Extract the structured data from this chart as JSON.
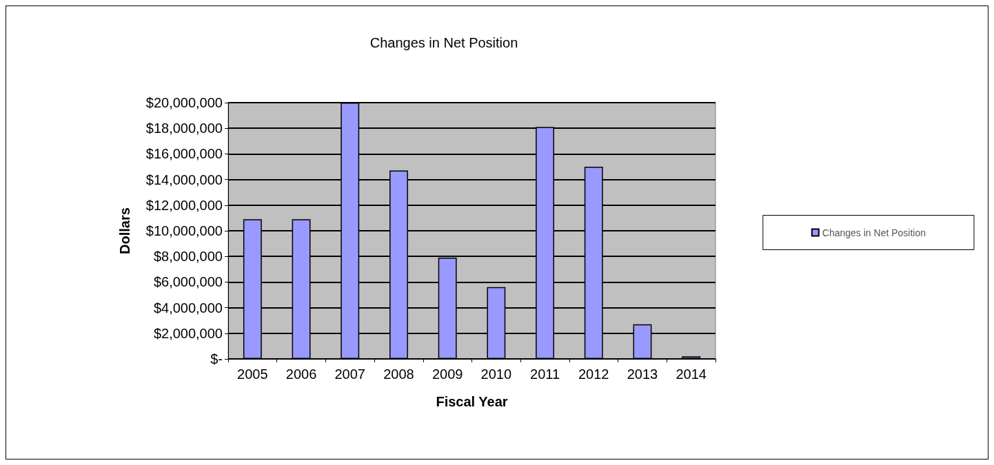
{
  "chart_data": {
    "type": "bar",
    "title": "Changes in Net Position",
    "xlabel": "Fiscal Year",
    "ylabel": "Dollars",
    "categories": [
      "2005",
      "2006",
      "2007",
      "2008",
      "2009",
      "2010",
      "2011",
      "2012",
      "2013",
      "2014"
    ],
    "series": [
      {
        "name": "Changes in Net Position",
        "color": "#9999ff",
        "values": [
          10900000,
          10900000,
          20000000,
          14700000,
          7900000,
          5600000,
          18100000,
          15000000,
          2700000,
          200000
        ]
      }
    ],
    "ylim": [
      0,
      20000000
    ],
    "yticks": [
      {
        "value": 0,
        "label": "$-"
      },
      {
        "value": 2000000,
        "label": "$2,000,000"
      },
      {
        "value": 4000000,
        "label": "$4,000,000"
      },
      {
        "value": 6000000,
        "label": "$6,000,000"
      },
      {
        "value": 8000000,
        "label": "$8,000,000"
      },
      {
        "value": 10000000,
        "label": "$10,000,000"
      },
      {
        "value": 12000000,
        "label": "$12,000,000"
      },
      {
        "value": 14000000,
        "label": "$14,000,000"
      },
      {
        "value": 16000000,
        "label": "$16,000,000"
      },
      {
        "value": 18000000,
        "label": "$18,000,000"
      },
      {
        "value": 20000000,
        "label": "$20,000,000"
      }
    ],
    "grid": "y",
    "legend": "right"
  }
}
